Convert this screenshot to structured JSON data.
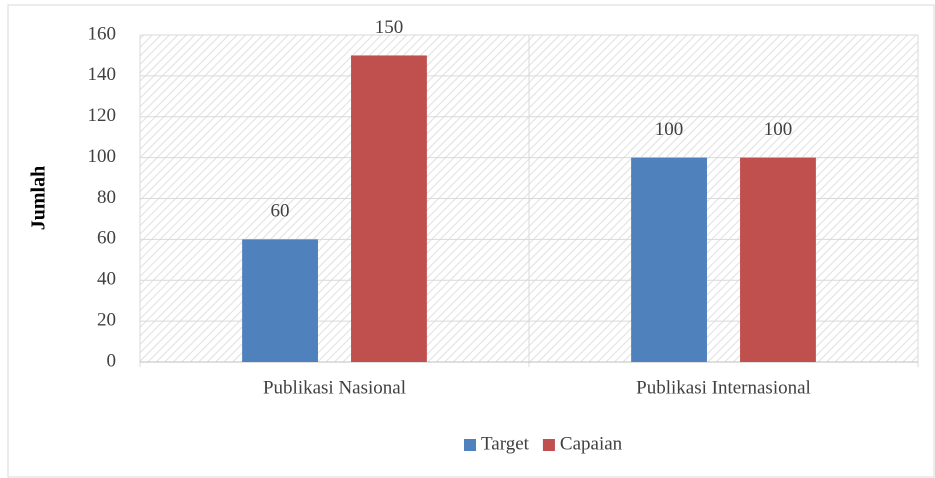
{
  "chart_data": {
    "type": "bar",
    "y_label": "Jumlah",
    "categories": [
      "Publikasi Nasional",
      "Publikasi Internasional"
    ],
    "series": [
      {
        "name": "Target",
        "color": "#4f81bd",
        "values": [
          60,
          100
        ]
      },
      {
        "name": "Capaian",
        "color": "#c0504d",
        "values": [
          150,
          100
        ]
      }
    ],
    "ylim": [
      0,
      160
    ],
    "yticks": [
      0,
      20,
      40,
      60,
      80,
      100,
      120,
      140,
      160
    ],
    "grid": true,
    "legend": "bottom",
    "data_labels": true
  }
}
